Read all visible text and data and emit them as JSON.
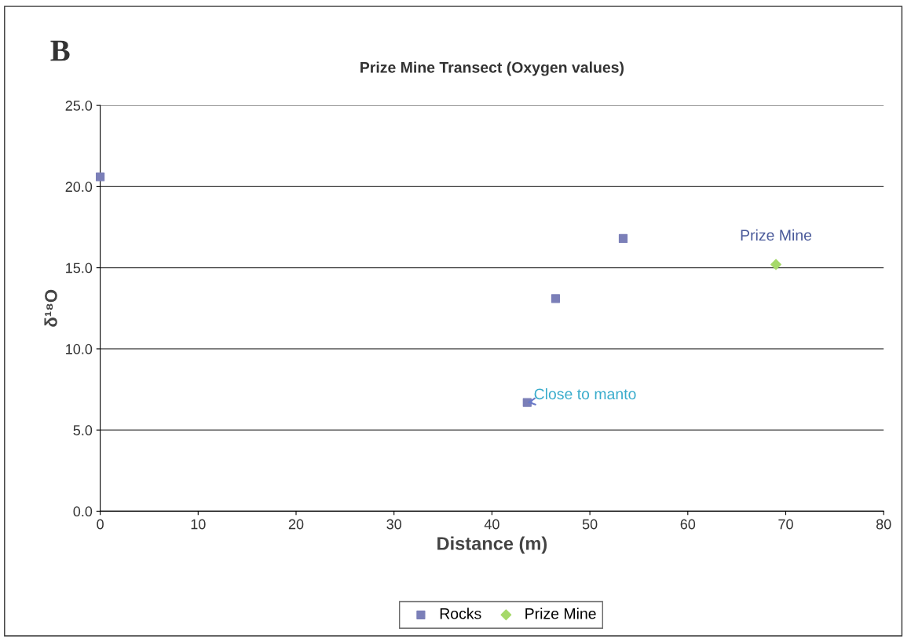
{
  "chart_data": {
    "type": "scatter",
    "title": "Prize Mine Transect (Oxygen values)",
    "xlabel": "Distance (m)",
    "ylabel": "δ¹⁸O",
    "xlim": [
      0,
      80
    ],
    "xticks": [
      0,
      10,
      20,
      30,
      40,
      50,
      60,
      70,
      80
    ],
    "ylim": [
      0,
      25
    ],
    "yticks": [
      {
        "value": 0,
        "label": "0.0"
      },
      {
        "value": 5,
        "label": "5.0"
      },
      {
        "value": 10,
        "label": "10.0"
      },
      {
        "value": 15,
        "label": "15.0"
      },
      {
        "value": 20,
        "label": "20.0"
      },
      {
        "value": 25,
        "label": "25.0"
      }
    ],
    "grid": "y",
    "legend": "bottom",
    "series": [
      {
        "name": "Rocks",
        "color": "#7b7fb8",
        "marker": "square",
        "x": [
          0,
          43.6,
          46.5,
          53.4
        ],
        "values": [
          20.6,
          6.7,
          13.1,
          16.8
        ]
      },
      {
        "name": "Prize Mine",
        "color": "#a6d96a",
        "marker": "diamond",
        "x": [
          69
        ],
        "values": [
          15.2
        ]
      }
    ],
    "annotations": [
      "B",
      {
        "text": "Prize Mine",
        "x": 69,
        "y": 15.2
      },
      {
        "text": "Close to manto",
        "x": 43.6,
        "y": 6.7
      }
    ]
  }
}
